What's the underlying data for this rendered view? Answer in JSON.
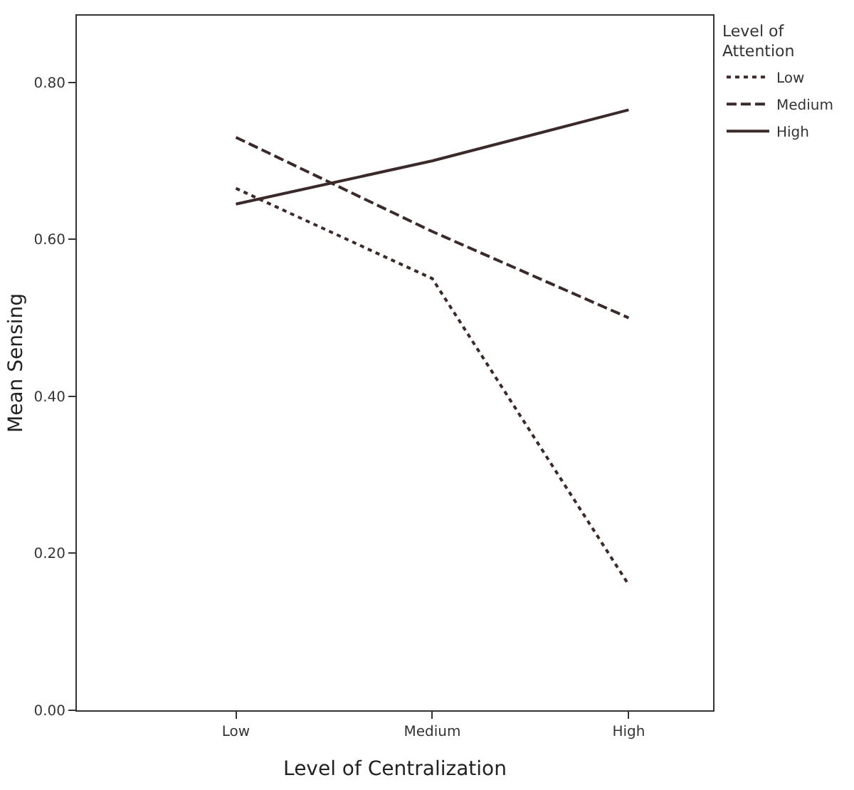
{
  "chart_data": {
    "type": "line",
    "xlabel": "Level of Centralization",
    "ylabel": "Mean Sensing",
    "legend_title": "Level of Attention",
    "legend": "right",
    "marker": "none",
    "categories": [
      "Low",
      "Medium",
      "High"
    ],
    "ylim": [
      0,
      0.885
    ],
    "yticks": [
      {
        "value": 0,
        "label": "0.00"
      },
      {
        "value": 0.2,
        "label": "0.20"
      },
      {
        "value": 0.4,
        "label": "0.40"
      },
      {
        "value": 0.6,
        "label": "0.60"
      },
      {
        "value": 0.8,
        "label": "0.80"
      }
    ],
    "series": [
      {
        "name": "Low",
        "color": "#3a2a2a",
        "line_style": "dotted",
        "values": [
          0.665,
          0.55,
          0.16
        ]
      },
      {
        "name": "Medium",
        "color": "#3a2a2a",
        "line_style": "dashed",
        "values": [
          0.73,
          0.61,
          0.5
        ]
      },
      {
        "name": "High",
        "color": "#3a2a2a",
        "line_style": "solid",
        "values": [
          0.645,
          0.7,
          0.765
        ]
      }
    ]
  }
}
